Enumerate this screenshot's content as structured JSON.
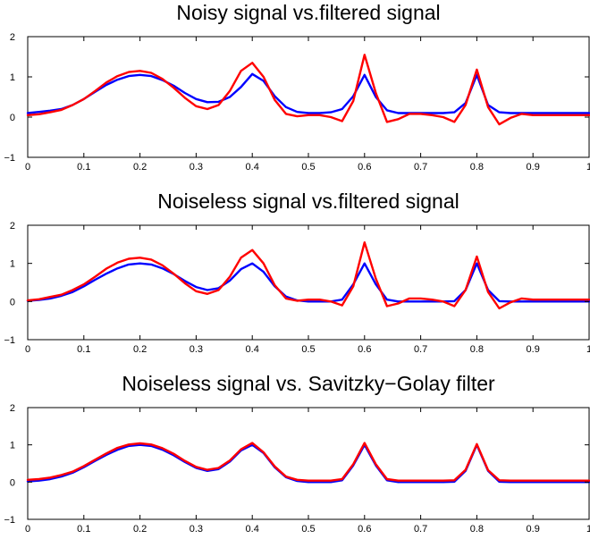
{
  "figure": {
    "background": "#ffffff"
  },
  "chart_data": [
    {
      "type": "line",
      "title": "Noisy signal vs.filtered signal",
      "xlabel": "",
      "ylabel": "",
      "xlim": [
        0,
        1
      ],
      "ylim": [
        -1,
        2
      ],
      "xticks": [
        0,
        0.1,
        0.2,
        0.3,
        0.4,
        0.5,
        0.6,
        0.7,
        0.8,
        0.9,
        1
      ],
      "xtick_labels": [
        "0",
        "0.1",
        "0.2",
        "0.3",
        "0.4",
        "0.5",
        "0.6",
        "0.7",
        "0.8",
        "0.9",
        "1"
      ],
      "yticks": [
        -1,
        0,
        1,
        2
      ],
      "ytick_labels": [
        "−1",
        "0",
        "1",
        "2"
      ],
      "grid": false,
      "series": [
        {
          "color": "#0000ff",
          "x": [
            0,
            0.02,
            0.04,
            0.06,
            0.08,
            0.1,
            0.12,
            0.14,
            0.16,
            0.18,
            0.2,
            0.22,
            0.24,
            0.26,
            0.28,
            0.3,
            0.32,
            0.34,
            0.36,
            0.38,
            0.4,
            0.42,
            0.44,
            0.46,
            0.48,
            0.5,
            0.52,
            0.54,
            0.56,
            0.58,
            0.6,
            0.62,
            0.64,
            0.66,
            0.68,
            0.7,
            0.72,
            0.74,
            0.76,
            0.78,
            0.8,
            0.82,
            0.84,
            0.86,
            0.88,
            0.9,
            0.92,
            0.94,
            0.96,
            0.98,
            1
          ],
          "y": [
            0.1,
            0.13,
            0.16,
            0.2,
            0.3,
            0.45,
            0.63,
            0.8,
            0.93,
            1.02,
            1.05,
            1.02,
            0.92,
            0.78,
            0.6,
            0.45,
            0.37,
            0.38,
            0.5,
            0.75,
            1.07,
            0.9,
            0.52,
            0.25,
            0.13,
            0.1,
            0.1,
            0.12,
            0.2,
            0.52,
            1.05,
            0.5,
            0.17,
            0.1,
            0.1,
            0.1,
            0.1,
            0.1,
            0.12,
            0.35,
            1.05,
            0.3,
            0.12,
            0.1,
            0.1,
            0.1,
            0.1,
            0.1,
            0.1,
            0.1,
            0.1
          ]
        },
        {
          "color": "#ff0000",
          "x": [
            0,
            0.02,
            0.04,
            0.06,
            0.08,
            0.1,
            0.12,
            0.14,
            0.16,
            0.18,
            0.2,
            0.22,
            0.24,
            0.26,
            0.28,
            0.3,
            0.32,
            0.34,
            0.36,
            0.38,
            0.4,
            0.42,
            0.44,
            0.46,
            0.48,
            0.5,
            0.52,
            0.54,
            0.56,
            0.58,
            0.6,
            0.62,
            0.64,
            0.66,
            0.68,
            0.7,
            0.72,
            0.74,
            0.76,
            0.78,
            0.8,
            0.82,
            0.84,
            0.86,
            0.88,
            0.9,
            0.92,
            0.94,
            0.96,
            0.98,
            1
          ],
          "y": [
            0.05,
            0.07,
            0.12,
            0.18,
            0.3,
            0.45,
            0.65,
            0.86,
            1.02,
            1.12,
            1.15,
            1.1,
            0.95,
            0.73,
            0.48,
            0.27,
            0.2,
            0.3,
            0.65,
            1.15,
            1.35,
            1.0,
            0.43,
            0.08,
            0.02,
            0.05,
            0.05,
            0.0,
            -0.1,
            0.4,
            1.55,
            0.6,
            -0.12,
            -0.05,
            0.08,
            0.08,
            0.05,
            0.0,
            -0.12,
            0.3,
            1.18,
            0.25,
            -0.18,
            -0.02,
            0.08,
            0.05,
            0.05,
            0.05,
            0.05,
            0.05,
            0.05
          ]
        }
      ]
    },
    {
      "type": "line",
      "title": "Noiseless signal vs.filtered signal",
      "xlabel": "",
      "ylabel": "",
      "xlim": [
        0,
        1
      ],
      "ylim": [
        -1,
        2
      ],
      "xticks": [
        0,
        0.1,
        0.2,
        0.3,
        0.4,
        0.5,
        0.6,
        0.7,
        0.8,
        0.9,
        1
      ],
      "xtick_labels": [
        "0",
        "0.1",
        "0.2",
        "0.3",
        "0.4",
        "0.5",
        "0.6",
        "0.7",
        "0.8",
        "0.9",
        "1"
      ],
      "yticks": [
        -1,
        0,
        1,
        2
      ],
      "ytick_labels": [
        "−1",
        "0",
        "1",
        "2"
      ],
      "grid": false,
      "series": [
        {
          "color": "#0000ff",
          "x": [
            0,
            0.02,
            0.04,
            0.06,
            0.08,
            0.1,
            0.12,
            0.14,
            0.16,
            0.18,
            0.2,
            0.22,
            0.24,
            0.26,
            0.28,
            0.3,
            0.32,
            0.34,
            0.36,
            0.38,
            0.4,
            0.42,
            0.44,
            0.46,
            0.48,
            0.5,
            0.52,
            0.54,
            0.56,
            0.58,
            0.6,
            0.62,
            0.64,
            0.66,
            0.68,
            0.7,
            0.72,
            0.74,
            0.76,
            0.78,
            0.8,
            0.82,
            0.84,
            0.86,
            0.88,
            0.9,
            0.92,
            0.94,
            0.96,
            0.98,
            1
          ],
          "y": [
            0.02,
            0.04,
            0.08,
            0.15,
            0.25,
            0.4,
            0.57,
            0.73,
            0.87,
            0.97,
            1.0,
            0.97,
            0.87,
            0.72,
            0.54,
            0.38,
            0.3,
            0.35,
            0.55,
            0.85,
            1.0,
            0.78,
            0.4,
            0.13,
            0.03,
            0.0,
            0.0,
            0.0,
            0.05,
            0.45,
            1.0,
            0.45,
            0.05,
            0.0,
            0.0,
            0.0,
            0.0,
            0.0,
            0.01,
            0.3,
            1.0,
            0.3,
            0.01,
            0.0,
            0.0,
            0.0,
            0.0,
            0.0,
            0.0,
            0.0,
            0.0
          ]
        },
        {
          "color": "#ff0000",
          "x": [
            0,
            0.02,
            0.04,
            0.06,
            0.08,
            0.1,
            0.12,
            0.14,
            0.16,
            0.18,
            0.2,
            0.22,
            0.24,
            0.26,
            0.28,
            0.3,
            0.32,
            0.34,
            0.36,
            0.38,
            0.4,
            0.42,
            0.44,
            0.46,
            0.48,
            0.5,
            0.52,
            0.54,
            0.56,
            0.58,
            0.6,
            0.62,
            0.64,
            0.66,
            0.68,
            0.7,
            0.72,
            0.74,
            0.76,
            0.78,
            0.8,
            0.82,
            0.84,
            0.86,
            0.88,
            0.9,
            0.92,
            0.94,
            0.96,
            0.98,
            1
          ],
          "y": [
            0.03,
            0.06,
            0.12,
            0.18,
            0.3,
            0.45,
            0.65,
            0.86,
            1.02,
            1.12,
            1.15,
            1.1,
            0.95,
            0.73,
            0.48,
            0.27,
            0.2,
            0.3,
            0.65,
            1.15,
            1.35,
            1.0,
            0.43,
            0.08,
            0.02,
            0.05,
            0.05,
            0.0,
            -0.1,
            0.4,
            1.55,
            0.6,
            -0.12,
            -0.05,
            0.08,
            0.08,
            0.05,
            0.0,
            -0.12,
            0.3,
            1.18,
            0.25,
            -0.18,
            -0.02,
            0.08,
            0.05,
            0.05,
            0.05,
            0.05,
            0.05,
            0.05
          ]
        }
      ]
    },
    {
      "type": "line",
      "title": "Noiseless signal vs. Savitzky−Golay filter",
      "xlabel": "",
      "ylabel": "",
      "xlim": [
        0,
        1
      ],
      "ylim": [
        -1,
        2
      ],
      "xticks": [
        0,
        0.1,
        0.2,
        0.3,
        0.4,
        0.5,
        0.6,
        0.7,
        0.8,
        0.9,
        1
      ],
      "xtick_labels": [
        "0",
        "0.1",
        "0.2",
        "0.3",
        "0.4",
        "0.5",
        "0.6",
        "0.7",
        "0.8",
        "0.9",
        "1"
      ],
      "yticks": [
        -1,
        0,
        1,
        2
      ],
      "ytick_labels": [
        "−1",
        "0",
        "1",
        "2"
      ],
      "grid": false,
      "series": [
        {
          "color": "#0000ff",
          "x": [
            0,
            0.02,
            0.04,
            0.06,
            0.08,
            0.1,
            0.12,
            0.14,
            0.16,
            0.18,
            0.2,
            0.22,
            0.24,
            0.26,
            0.28,
            0.3,
            0.32,
            0.34,
            0.36,
            0.38,
            0.4,
            0.42,
            0.44,
            0.46,
            0.48,
            0.5,
            0.52,
            0.54,
            0.56,
            0.58,
            0.6,
            0.62,
            0.64,
            0.66,
            0.68,
            0.7,
            0.72,
            0.74,
            0.76,
            0.78,
            0.8,
            0.82,
            0.84,
            0.86,
            0.88,
            0.9,
            0.92,
            0.94,
            0.96,
            0.98,
            1
          ],
          "y": [
            0.02,
            0.04,
            0.08,
            0.15,
            0.25,
            0.4,
            0.57,
            0.73,
            0.87,
            0.97,
            1.0,
            0.97,
            0.87,
            0.72,
            0.54,
            0.38,
            0.3,
            0.35,
            0.55,
            0.85,
            1.0,
            0.78,
            0.4,
            0.13,
            0.03,
            0.0,
            0.0,
            0.0,
            0.05,
            0.45,
            1.0,
            0.45,
            0.05,
            0.0,
            0.0,
            0.0,
            0.0,
            0.0,
            0.01,
            0.3,
            1.0,
            0.3,
            0.01,
            0.0,
            0.0,
            0.0,
            0.0,
            0.0,
            0.0,
            0.0,
            0.0
          ]
        },
        {
          "color": "#ff0000",
          "x": [
            0,
            0.02,
            0.04,
            0.06,
            0.08,
            0.1,
            0.12,
            0.14,
            0.16,
            0.18,
            0.2,
            0.22,
            0.24,
            0.26,
            0.28,
            0.3,
            0.32,
            0.34,
            0.36,
            0.38,
            0.4,
            0.42,
            0.44,
            0.46,
            0.48,
            0.5,
            0.52,
            0.54,
            0.56,
            0.58,
            0.6,
            0.62,
            0.64,
            0.66,
            0.68,
            0.7,
            0.72,
            0.74,
            0.76,
            0.78,
            0.8,
            0.82,
            0.84,
            0.86,
            0.88,
            0.9,
            0.92,
            0.94,
            0.96,
            0.98,
            1
          ],
          "y": [
            0.06,
            0.08,
            0.12,
            0.19,
            0.28,
            0.43,
            0.6,
            0.77,
            0.92,
            1.01,
            1.04,
            1.01,
            0.91,
            0.76,
            0.57,
            0.41,
            0.33,
            0.38,
            0.58,
            0.88,
            1.05,
            0.8,
            0.42,
            0.15,
            0.06,
            0.04,
            0.04,
            0.04,
            0.08,
            0.48,
            1.05,
            0.48,
            0.08,
            0.04,
            0.04,
            0.04,
            0.04,
            0.04,
            0.05,
            0.33,
            1.02,
            0.32,
            0.05,
            0.04,
            0.04,
            0.04,
            0.04,
            0.04,
            0.04,
            0.04,
            0.04
          ]
        }
      ]
    }
  ]
}
